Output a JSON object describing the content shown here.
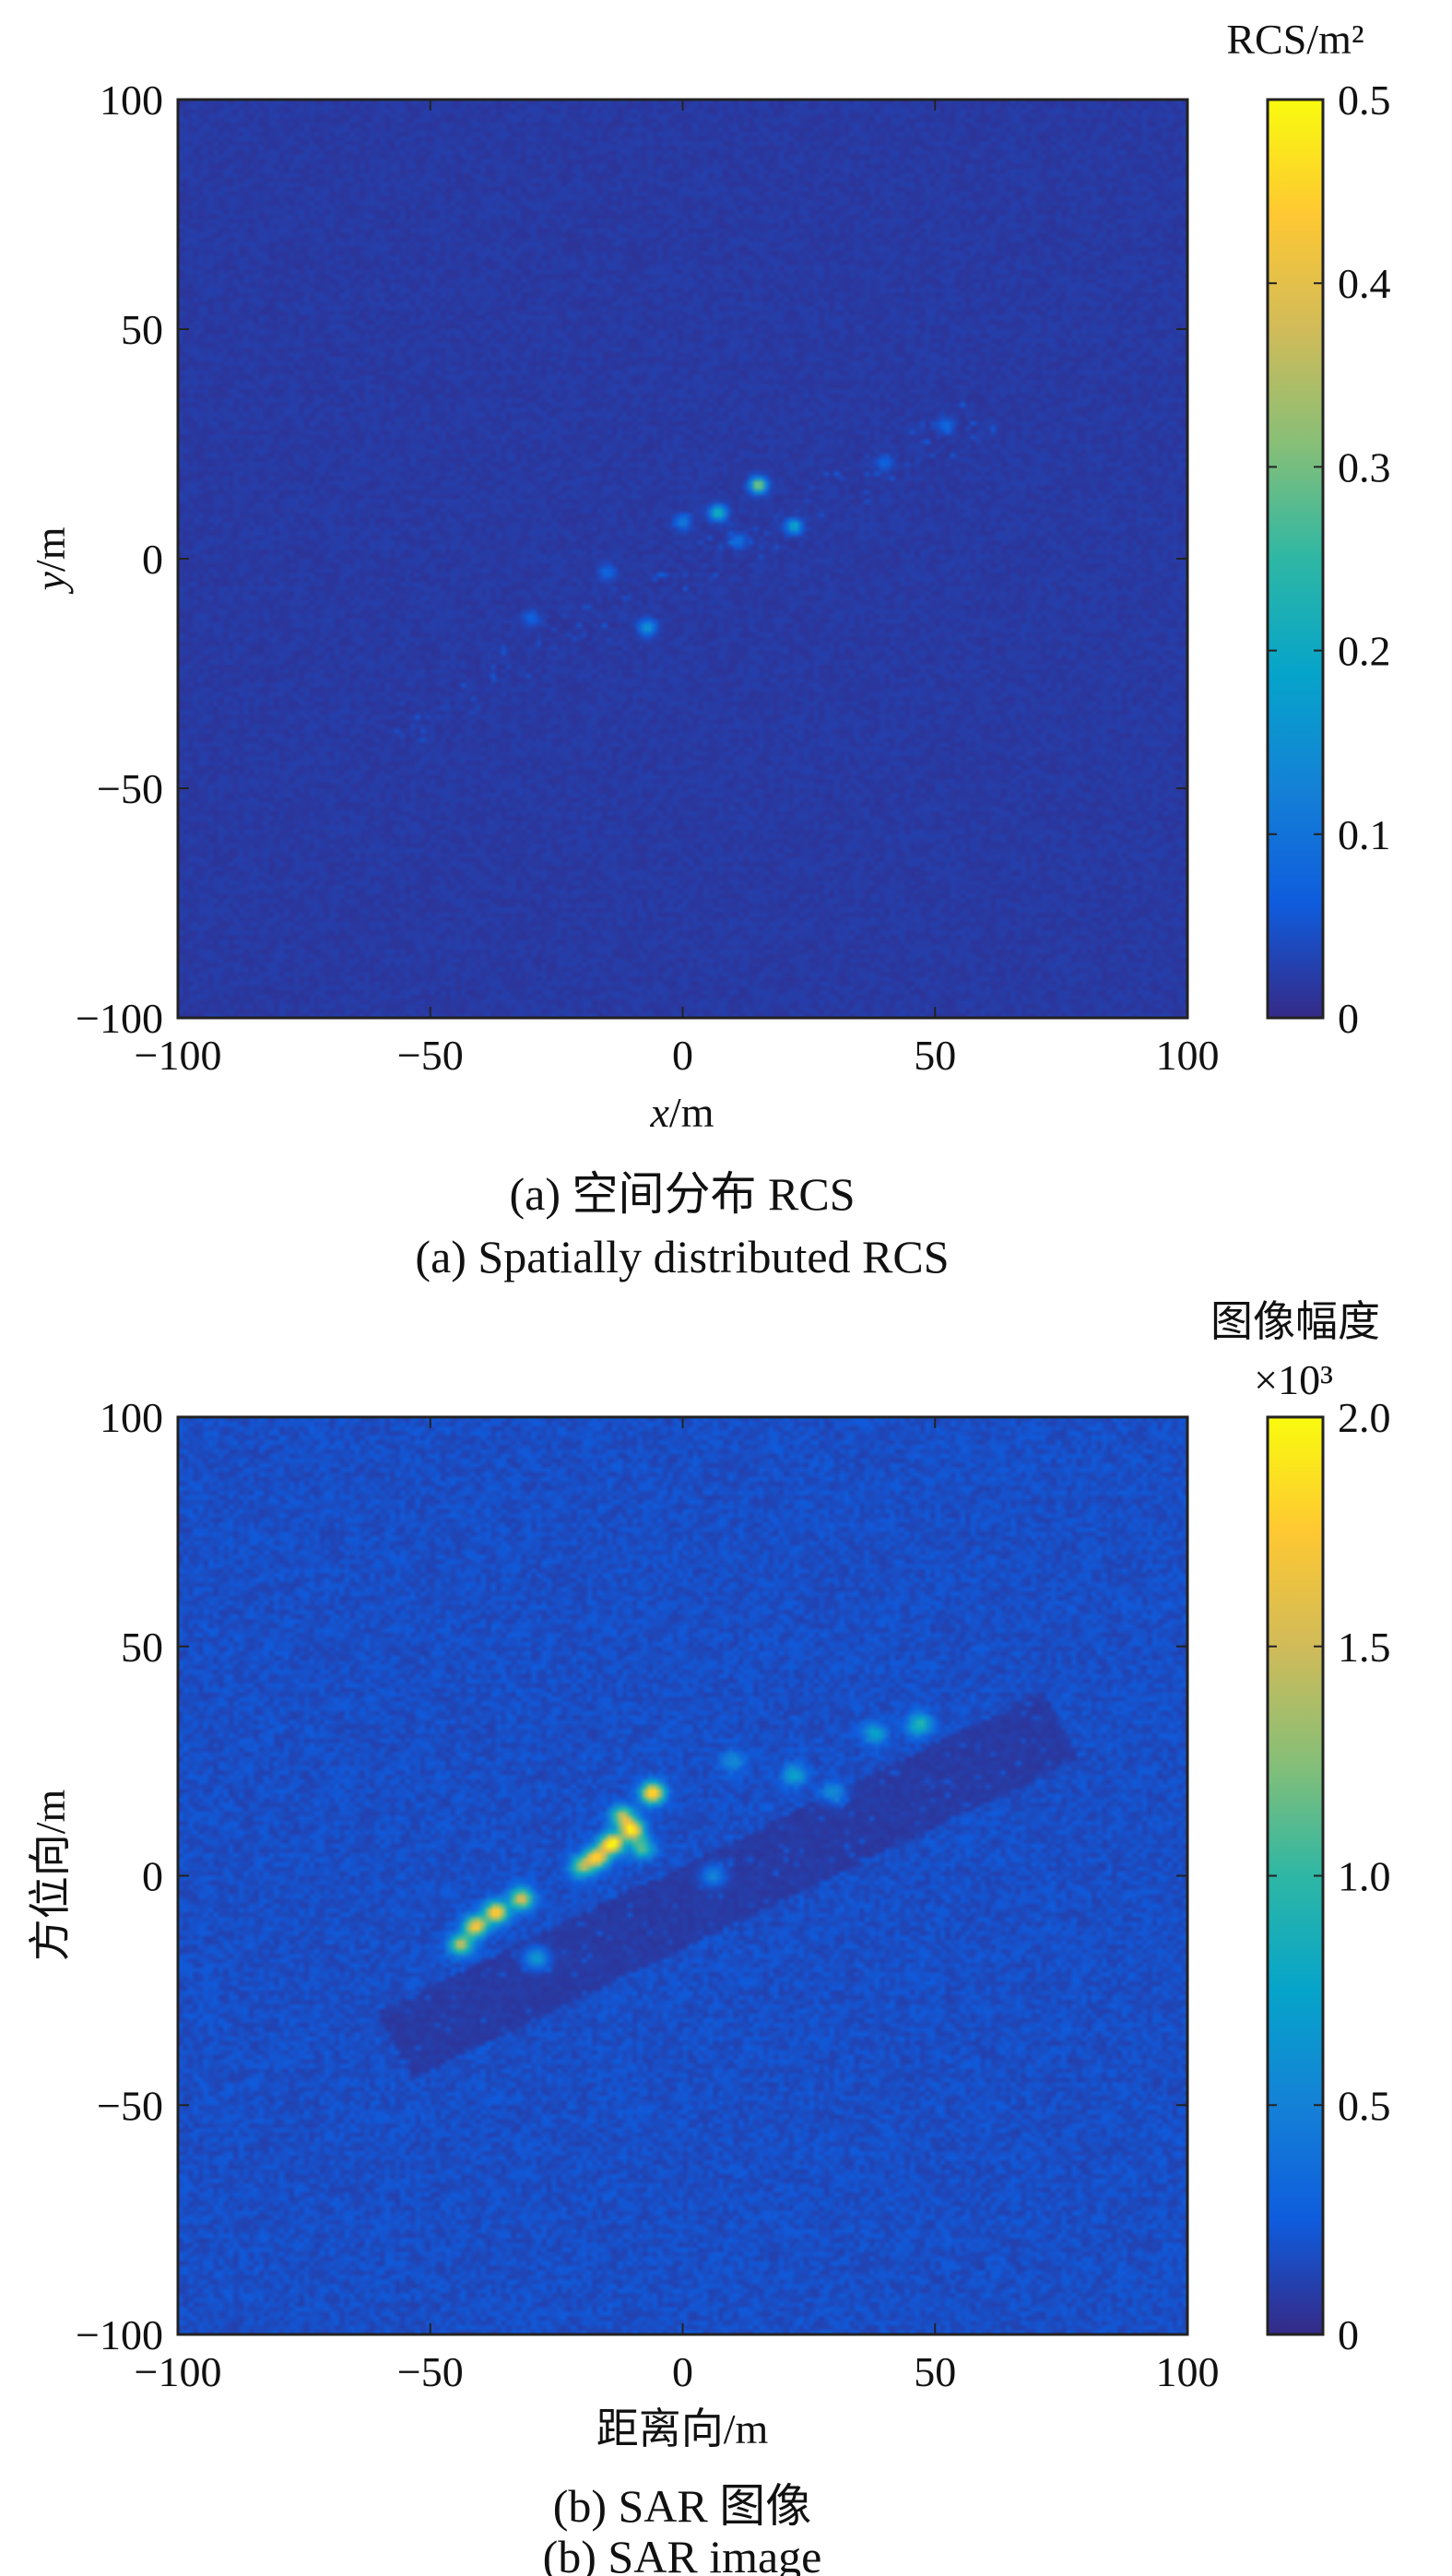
{
  "chart_data": [
    {
      "type": "heatmap",
      "xlabel": "x/m",
      "ylabel": "y/m",
      "xlim": [
        -100,
        100
      ],
      "ylim": [
        -100,
        100
      ],
      "xticks": [
        -100,
        -50,
        0,
        50,
        100
      ],
      "yticks": [
        -100,
        -50,
        0,
        50,
        100
      ],
      "colorbar": {
        "title": "RCS/m²",
        "range": [
          0,
          0.5
        ],
        "ticks": [
          0,
          0.1,
          0.2,
          0.3,
          0.4,
          0.5
        ],
        "tick_labels": [
          "0",
          "0.1",
          "0.2",
          "0.3",
          "0.4",
          "0.5"
        ],
        "colormap": "parula"
      },
      "caption_cn": "(a) 空间分布 RCS",
      "caption_en": "(a) Spatially distributed RCS",
      "features": {
        "ship_axis": [
          [
            -57,
            -37
          ],
          [
            63,
            33
          ]
        ],
        "ship_half_width_m": 5,
        "background_level": 0.02,
        "scatterers": [
          {
            "x": 15,
            "y": 16,
            "v": 0.32
          },
          {
            "x": 7,
            "y": 10,
            "v": 0.22
          },
          {
            "x": 22,
            "y": 7,
            "v": 0.18
          },
          {
            "x": -7,
            "y": -15,
            "v": 0.15
          },
          {
            "x": 0,
            "y": 8,
            "v": 0.1
          },
          {
            "x": 11,
            "y": 4,
            "v": 0.08
          },
          {
            "x": -15,
            "y": -3,
            "v": 0.07
          },
          {
            "x": -30,
            "y": -13,
            "v": 0.06
          },
          {
            "x": 52,
            "y": 29,
            "v": 0.07
          },
          {
            "x": 40,
            "y": 21,
            "v": 0.06
          }
        ]
      }
    },
    {
      "type": "heatmap",
      "xlabel": "距离向/m",
      "ylabel": "方位向/m",
      "xlim": [
        -100,
        100
      ],
      "ylim": [
        -100,
        100
      ],
      "xticks": [
        -100,
        -50,
        0,
        50,
        100
      ],
      "yticks": [
        -100,
        -50,
        0,
        50,
        100
      ],
      "colorbar": {
        "title": "图像幅度",
        "multiplier": "×10³",
        "range": [
          0,
          2.0
        ],
        "ticks": [
          0,
          0.5,
          1.0,
          1.5,
          2.0
        ],
        "tick_labels": [
          "0",
          "0.5",
          "1.0",
          "1.5",
          "2.0"
        ],
        "colormap": "parula"
      },
      "caption_cn": "(b) SAR 图像",
      "caption_en": "(b) SAR image",
      "features": {
        "ship_axis": [
          [
            -57,
            -37
          ],
          [
            75,
            33
          ]
        ],
        "ship_half_width_m": 8,
        "background_level": 0.18,
        "scatterers": [
          {
            "x": -14,
            "y": 7,
            "v": 1.85
          },
          {
            "x": -10,
            "y": 10,
            "v": 1.7
          },
          {
            "x": -6,
            "y": 18,
            "v": 1.8
          },
          {
            "x": -17,
            "y": 4,
            "v": 1.6
          },
          {
            "x": -37,
            "y": -8,
            "v": 1.7
          },
          {
            "x": -41,
            "y": -11,
            "v": 1.55
          },
          {
            "x": -32,
            "y": -5,
            "v": 1.45
          },
          {
            "x": -44,
            "y": -15,
            "v": 1.3
          },
          {
            "x": -20,
            "y": 2,
            "v": 1.1
          },
          {
            "x": -12,
            "y": 13,
            "v": 1.2
          },
          {
            "x": -8,
            "y": 6,
            "v": 0.9
          },
          {
            "x": 47,
            "y": 33,
            "v": 0.8
          },
          {
            "x": 22,
            "y": 22,
            "v": 0.6
          },
          {
            "x": -29,
            "y": -18,
            "v": 0.6
          },
          {
            "x": 38,
            "y": 31,
            "v": 0.55
          },
          {
            "x": 30,
            "y": 18,
            "v": 0.45
          },
          {
            "x": 6,
            "y": 0,
            "v": 0.45
          },
          {
            "x": 10,
            "y": 25,
            "v": 0.4
          }
        ]
      }
    }
  ]
}
